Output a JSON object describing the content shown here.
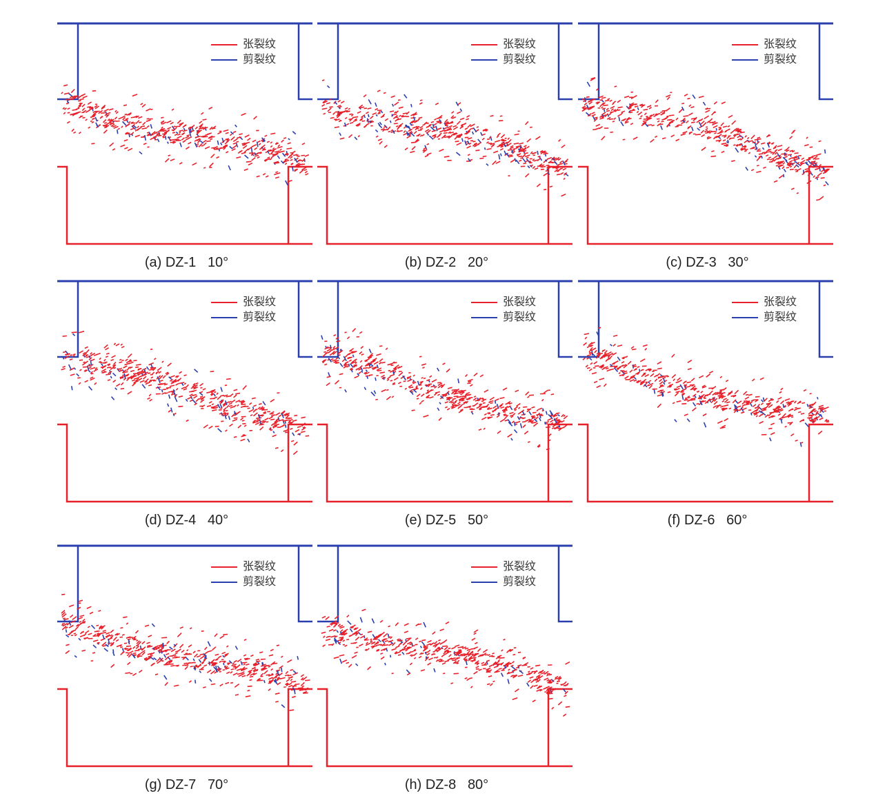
{
  "legend": {
    "tension_label": "张裂纹",
    "shear_label": "剪裂纹",
    "tension_color": "#e8202a",
    "shear_color": "#2a3fae"
  },
  "colors": {
    "upper_box": "#2a3fae",
    "lower_box": "#e8202a"
  },
  "panels": [
    {
      "id": "a",
      "code": "(a) DZ-1",
      "angle": "10°",
      "angle_deg": 10
    },
    {
      "id": "b",
      "code": "(b) DZ-2",
      "angle": "20°",
      "angle_deg": 20
    },
    {
      "id": "c",
      "code": "(c) DZ-3",
      "angle": "30°",
      "angle_deg": 30
    },
    {
      "id": "d",
      "code": "(d) DZ-4",
      "angle": "40°",
      "angle_deg": 40
    },
    {
      "id": "e",
      "code": "(e) DZ-5",
      "angle": "50°",
      "angle_deg": 50
    },
    {
      "id": "f",
      "code": "(f) DZ-6",
      "angle": "60°",
      "angle_deg": 60
    },
    {
      "id": "g",
      "code": "(g) DZ-7",
      "angle": "70°",
      "angle_deg": 70
    },
    {
      "id": "h",
      "code": "(h) DZ-8",
      "angle": "80°",
      "angle_deg": 80
    }
  ]
}
